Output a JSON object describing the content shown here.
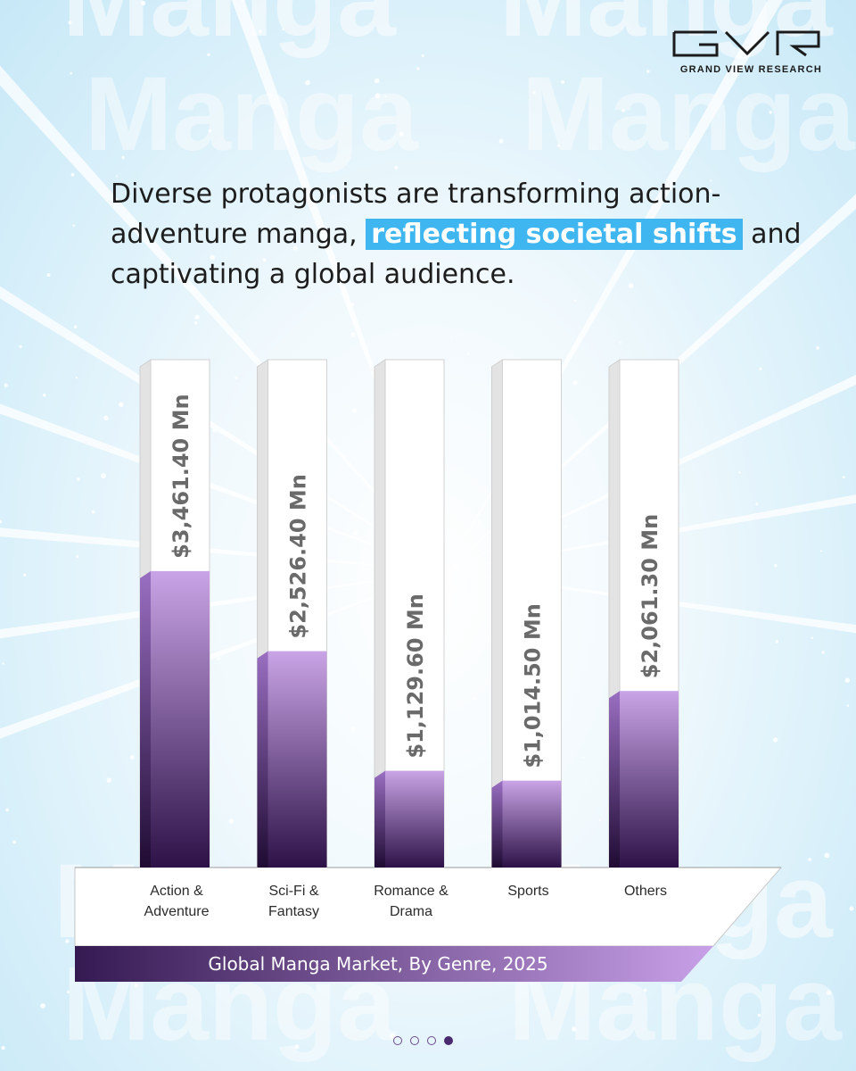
{
  "brand": {
    "logo_name": "gvr-logo",
    "name": "GRAND VIEW RESEARCH",
    "watermark_word": "Manga"
  },
  "headline": {
    "part1": "Diverse protagonists are transforming action-adventure manga, ",
    "highlight": "reflecting societal shifts",
    "part2": " and captivating a global audience."
  },
  "colors": {
    "bar_top": "#c9a4e6",
    "bar_bottom": "#2d1247",
    "highlight": "#3fb6f0",
    "band_left": "#351a52",
    "band_right": "#c8a0e8"
  },
  "chart_data": {
    "type": "bar",
    "title": "Global Manga Market, By Genre, 2025",
    "categories": [
      "Action & Adventure",
      "Sci-Fi & Fantasy",
      "Romance & Drama",
      "Sports",
      "Others"
    ],
    "category_lines": [
      [
        "Action &",
        "Adventure"
      ],
      [
        "Sci-Fi &",
        "Fantasy"
      ],
      [
        "Romance &",
        "Drama"
      ],
      [
        "Sports"
      ],
      [
        "Others"
      ]
    ],
    "values": [
      3461.4,
      2526.4,
      1129.6,
      1014.5,
      2061.3
    ],
    "value_labels": [
      "$3,461.40 Mn",
      "$2,526.40 Mn",
      "$1,129.60 Mn",
      "$1,014.50 Mn",
      "$2,061.30 Mn"
    ],
    "unit": "USD Mn",
    "legend": "none",
    "grid": false
  },
  "pagination": {
    "total": 4,
    "active": 4
  }
}
